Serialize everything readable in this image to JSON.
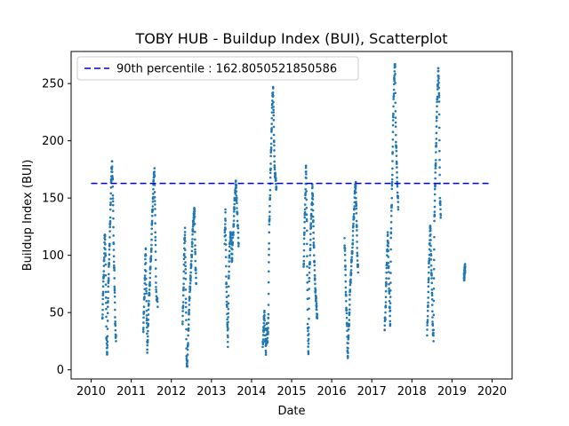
{
  "chart_data": {
    "type": "scatter",
    "title": "TOBY HUB - Buildup Index (BUI), Scatterplot",
    "xlabel": "Date",
    "ylabel": "Buildup Index (BUI)",
    "xlim": [
      2009.5,
      2020.5
    ],
    "ylim": [
      -8,
      278
    ],
    "x_ticks": [
      2010,
      2011,
      2012,
      2013,
      2014,
      2015,
      2016,
      2017,
      2018,
      2019,
      2020
    ],
    "y_ticks": [
      0,
      50,
      100,
      150,
      200,
      250
    ],
    "grid": false,
    "legend_position": "top-left",
    "colors": {
      "points": "#1f77b4",
      "threshold": "#0000cd"
    },
    "threshold": {
      "label": "90th percentile : 162.8050521850586",
      "value": 162.8050521850586,
      "x_range": [
        2010.0,
        2020.0
      ]
    },
    "series": [
      {
        "seasons": [
          {
            "start": 2010.28,
            "end": 2010.62,
            "points": [
              [
                2010.28,
                45
              ],
              [
                2010.3,
                68
              ],
              [
                2010.32,
                95
              ],
              [
                2010.34,
                118
              ],
              [
                2010.36,
                100
              ],
              [
                2010.38,
                28
              ],
              [
                2010.4,
                15
              ],
              [
                2010.42,
                60
              ],
              [
                2010.44,
                90
              ],
              [
                2010.46,
                108
              ],
              [
                2010.48,
                140
              ],
              [
                2010.5,
                165
              ],
              [
                2010.52,
                182
              ],
              [
                2010.54,
                160
              ],
              [
                2010.56,
                110
              ],
              [
                2010.58,
                80
              ],
              [
                2010.6,
                40
              ],
              [
                2010.62,
                25
              ]
            ]
          },
          {
            "start": 2011.3,
            "end": 2011.68,
            "points": [
              [
                2011.3,
                35
              ],
              [
                2011.32,
                55
              ],
              [
                2011.34,
                80
              ],
              [
                2011.36,
                106
              ],
              [
                2011.38,
                60
              ],
              [
                2011.4,
                15
              ],
              [
                2011.42,
                40
              ],
              [
                2011.44,
                60
              ],
              [
                2011.46,
                75
              ],
              [
                2011.48,
                90
              ],
              [
                2011.5,
                105
              ],
              [
                2011.52,
                130
              ],
              [
                2011.54,
                150
              ],
              [
                2011.56,
                165
              ],
              [
                2011.58,
                176
              ],
              [
                2011.6,
                120
              ],
              [
                2011.62,
                70
              ],
              [
                2011.66,
                55
              ]
            ]
          },
          {
            "start": 2012.28,
            "end": 2012.68,
            "points": [
              [
                2012.28,
                40
              ],
              [
                2012.3,
                65
              ],
              [
                2012.32,
                100
              ],
              [
                2012.34,
                124
              ],
              [
                2012.36,
                70
              ],
              [
                2012.38,
                10
              ],
              [
                2012.4,
                3
              ],
              [
                2012.42,
                30
              ],
              [
                2012.44,
                50
              ],
              [
                2012.46,
                68
              ],
              [
                2012.48,
                80
              ],
              [
                2012.5,
                95
              ],
              [
                2012.52,
                110
              ],
              [
                2012.54,
                125
              ],
              [
                2012.56,
                135
              ],
              [
                2012.58,
                139
              ],
              [
                2012.6,
                95
              ],
              [
                2012.62,
                75
              ]
            ]
          },
          {
            "start": 2013.33,
            "end": 2013.72,
            "points": [
              [
                2013.33,
                110
              ],
              [
                2013.35,
                140
              ],
              [
                2013.37,
                75
              ],
              [
                2013.39,
                55
              ],
              [
                2013.41,
                20
              ],
              [
                2013.43,
                80
              ],
              [
                2013.45,
                100
              ],
              [
                2013.47,
                120
              ],
              [
                2013.49,
                115
              ],
              [
                2013.51,
                95
              ],
              [
                2013.53,
                110
              ],
              [
                2013.55,
                125
              ],
              [
                2013.57,
                140
              ],
              [
                2013.59,
                155
              ],
              [
                2013.61,
                162
              ],
              [
                2013.63,
                150
              ],
              [
                2013.65,
                130
              ],
              [
                2013.68,
                110
              ]
            ]
          },
          {
            "start": 2014.28,
            "end": 2014.68,
            "points": [
              [
                2014.28,
                20
              ],
              [
                2014.3,
                35
              ],
              [
                2014.32,
                50
              ],
              [
                2014.34,
                30
              ],
              [
                2014.36,
                15
              ],
              [
                2014.38,
                40
              ],
              [
                2014.4,
                25
              ],
              [
                2014.42,
                45
              ],
              [
                2014.44,
                120
              ],
              [
                2014.46,
                150
              ],
              [
                2014.48,
                180
              ],
              [
                2014.5,
                210
              ],
              [
                2014.52,
                235
              ],
              [
                2014.54,
                247
              ],
              [
                2014.56,
                200
              ],
              [
                2014.58,
                175
              ],
              [
                2014.6,
                165
              ],
              [
                2014.62,
                160
              ]
            ]
          },
          {
            "start": 2015.3,
            "end": 2015.7,
            "points": [
              [
                2015.3,
                90
              ],
              [
                2015.32,
                120
              ],
              [
                2015.34,
                150
              ],
              [
                2015.36,
                178
              ],
              [
                2015.38,
                130
              ],
              [
                2015.4,
                40
              ],
              [
                2015.42,
                15
              ],
              [
                2015.44,
                80
              ],
              [
                2015.46,
                100
              ],
              [
                2015.48,
                125
              ],
              [
                2015.5,
                140
              ],
              [
                2015.52,
                160
              ],
              [
                2015.54,
                130
              ],
              [
                2015.56,
                100
              ],
              [
                2015.58,
                80
              ],
              [
                2015.6,
                65
              ],
              [
                2015.62,
                55
              ],
              [
                2015.64,
                45
              ]
            ]
          },
          {
            "start": 2016.32,
            "end": 2016.7,
            "points": [
              [
                2016.32,
                115
              ],
              [
                2016.34,
                90
              ],
              [
                2016.36,
                60
              ],
              [
                2016.38,
                40
              ],
              [
                2016.4,
                12
              ],
              [
                2016.42,
                30
              ],
              [
                2016.44,
                50
              ],
              [
                2016.46,
                70
              ],
              [
                2016.48,
                85
              ],
              [
                2016.5,
                95
              ],
              [
                2016.52,
                110
              ],
              [
                2016.54,
                125
              ],
              [
                2016.56,
                140
              ],
              [
                2016.58,
                155
              ],
              [
                2016.6,
                164
              ],
              [
                2016.62,
                130
              ],
              [
                2016.64,
                100
              ],
              [
                2016.66,
                85
              ]
            ]
          },
          {
            "start": 2017.32,
            "end": 2017.72,
            "points": [
              [
                2017.32,
                35
              ],
              [
                2017.34,
                50
              ],
              [
                2017.36,
                75
              ],
              [
                2017.38,
                100
              ],
              [
                2017.4,
                118
              ],
              [
                2017.42,
                90
              ],
              [
                2017.44,
                60
              ],
              [
                2017.46,
                40
              ],
              [
                2017.48,
                120
              ],
              [
                2017.5,
                150
              ],
              [
                2017.52,
                190
              ],
              [
                2017.54,
                230
              ],
              [
                2017.56,
                255
              ],
              [
                2017.58,
                267
              ],
              [
                2017.6,
                205
              ],
              [
                2017.62,
                180
              ],
              [
                2017.64,
                160
              ],
              [
                2017.66,
                140
              ]
            ]
          },
          {
            "start": 2018.38,
            "end": 2018.72,
            "points": [
              [
                2018.38,
                30
              ],
              [
                2018.4,
                55
              ],
              [
                2018.42,
                80
              ],
              [
                2018.44,
                110
              ],
              [
                2018.46,
                125
              ],
              [
                2018.48,
                100
              ],
              [
                2018.5,
                70
              ],
              [
                2018.52,
                40
              ],
              [
                2018.54,
                25
              ],
              [
                2018.56,
                130
              ],
              [
                2018.58,
                160
              ],
              [
                2018.6,
                190
              ],
              [
                2018.62,
                220
              ],
              [
                2018.64,
                245
              ],
              [
                2018.66,
                261
              ],
              [
                2018.68,
                240
              ],
              [
                2018.7,
                150
              ],
              [
                2018.72,
                135
              ]
            ]
          },
          {
            "start": 2019.3,
            "end": 2019.33,
            "points": [
              [
                2019.3,
                80
              ],
              [
                2019.31,
                84
              ],
              [
                2019.32,
                87
              ],
              [
                2019.33,
                90
              ]
            ]
          }
        ]
      }
    ]
  }
}
